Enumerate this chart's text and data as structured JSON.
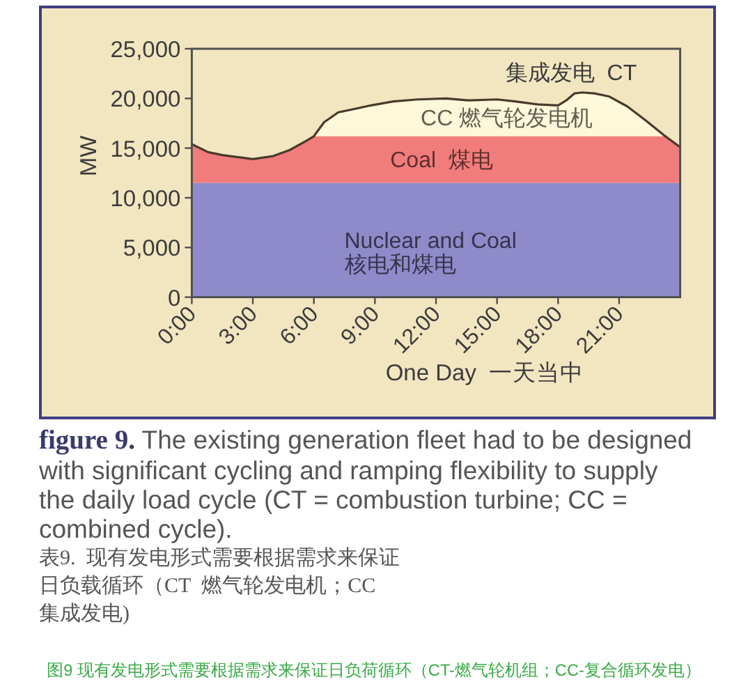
{
  "chart_data": {
    "type": "area",
    "stacked": true,
    "xlabel": "One Day  一天当中",
    "ylabel": "MW",
    "x": [
      0,
      0.8,
      1.5,
      3,
      4,
      4.8,
      5.6,
      6,
      6.5,
      7.2,
      7.9,
      8.8,
      9.9,
      11.1,
      12.5,
      13.6,
      15,
      15.9,
      17,
      18,
      18.4,
      18.8,
      19.2,
      19.8,
      20.5,
      21.4,
      22.3,
      23.2,
      24
    ],
    "series": [
      {
        "name": "Nuclear and Coal 核电和煤电",
        "color": "#8f8ac9",
        "values": [
          11500,
          11500,
          11500,
          11500,
          11500,
          11500,
          11500,
          11500,
          11500,
          11500,
          11500,
          11500,
          11500,
          11500,
          11500,
          11500,
          11500,
          11500,
          11500,
          11500,
          11500,
          11500,
          11500,
          11500,
          11500,
          11500,
          11500,
          11500,
          11500
        ]
      },
      {
        "name": "Coal  煤电",
        "color": "#f27c7b",
        "values": [
          3900,
          3100,
          2800,
          2400,
          2700,
          3300,
          4200,
          4700,
          4700,
          4700,
          4700,
          4700,
          4700,
          4700,
          4700,
          4700,
          4700,
          4700,
          4700,
          4700,
          4700,
          4700,
          4700,
          4700,
          4700,
          4700,
          4700,
          4700,
          3600
        ]
      },
      {
        "name": "CC 燃气轮发电机",
        "color": "#fcf8d9",
        "values": [
          0,
          0,
          0,
          0,
          0,
          0,
          0,
          0,
          1400,
          2400,
          2700,
          3100,
          3500,
          3700,
          3800,
          3600,
          3700,
          3500,
          3200,
          3100,
          3600,
          4300,
          4400,
          4300,
          4000,
          3000,
          1600,
          100,
          0
        ]
      }
    ],
    "xlim": [
      0,
      24
    ],
    "xticks": [
      {
        "value": 0,
        "label": "0:00"
      },
      {
        "value": 3,
        "label": "3:00"
      },
      {
        "value": 6,
        "label": "6:00"
      },
      {
        "value": 9,
        "label": "9:00"
      },
      {
        "value": 12,
        "label": "12:00"
      },
      {
        "value": 15,
        "label": "15:00"
      },
      {
        "value": 18,
        "label": "18:00"
      },
      {
        "value": 21,
        "label": "21:00"
      }
    ],
    "ylim": [
      0,
      25000
    ],
    "yticks": [
      0,
      {
        "value": 5000,
        "label": "5,000"
      },
      {
        "value": 10000,
        "label": "10,000"
      },
      {
        "value": 15000,
        "label": "15,000"
      },
      {
        "value": 20000,
        "label": "20,000"
      },
      {
        "value": 25000,
        "label": "25,000"
      }
    ],
    "annotations": [
      "集成发电  CT",
      "**figure 9.** The existing generation fleet had to be designed with significant cycling and ramping flexibility to supply the daily load cycle (CT = combustion turbine; CC = combined cycle).",
      "表9. 现有发电形式需要根据需求来保证日负载循环（CT 燃气轮发电机；CC 集成发电)",
      "图9 现有发电形式需要根据需求来保证日负荷循环（CT-燃气轮机组；CC-复合循环发电）"
    ]
  }
}
